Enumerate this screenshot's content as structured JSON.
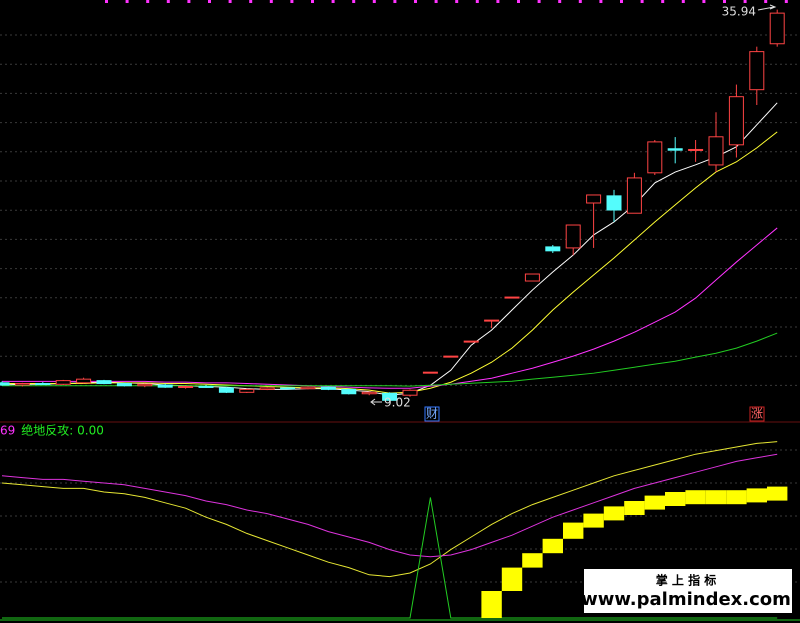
{
  "chart_data": [
    {
      "type": "candlestick",
      "ylim": [
        7.8,
        36.6
      ],
      "up_color": "#ff4444",
      "down_color": "#54fcfc",
      "open": [
        10.35,
        10.2,
        10.3,
        10.25,
        10.35,
        10.5,
        10.3,
        10.15,
        10.2,
        10.05,
        10.1,
        10.0,
        9.7,
        9.9,
        10.0,
        9.95,
        10.05,
        9.9,
        9.6,
        9.63,
        9.5,
        11.08,
        12.18,
        13.21,
        14.65,
        16.23,
        17.33,
        19.67,
        19.6,
        22.68,
        23.17,
        21.98,
        24.75,
        26.4,
        26.3,
        25.29,
        26.67,
        30.45,
        33.6
      ],
      "high": [
        10.45,
        10.35,
        10.4,
        10.55,
        10.7,
        10.55,
        10.35,
        10.3,
        10.3,
        10.15,
        10.2,
        10.05,
        9.95,
        10.05,
        10.05,
        10.1,
        10.1,
        9.95,
        9.75,
        9.7,
        9.9,
        11.08,
        12.18,
        13.21,
        14.65,
        16.23,
        17.81,
        19.8,
        21.17,
        23.23,
        23.58,
        24.75,
        27.0,
        27.2,
        27.0,
        28.9,
        30.8,
        33.4,
        35.94
      ],
      "low": [
        10.15,
        10.1,
        10.2,
        10.2,
        10.3,
        10.25,
        10.1,
        10.05,
        10.0,
        9.95,
        10.0,
        9.65,
        9.65,
        9.85,
        9.9,
        9.9,
        9.85,
        9.55,
        9.5,
        9.02,
        9.4,
        11.08,
        12.18,
        13.21,
        14.1,
        16.23,
        17.33,
        19.25,
        19.1,
        19.6,
        21.38,
        21.98,
        24.6,
        25.4,
        25.5,
        24.8,
        25.8,
        29.4,
        33.4
      ],
      "close": [
        10.2,
        10.3,
        10.25,
        10.5,
        10.6,
        10.3,
        10.15,
        10.25,
        10.05,
        10.1,
        10.05,
        9.7,
        9.9,
        10.0,
        9.95,
        10.05,
        9.9,
        9.6,
        9.7,
        9.15,
        9.84,
        11.08,
        12.18,
        13.21,
        14.65,
        16.23,
        17.81,
        19.4,
        21.17,
        23.23,
        22.2,
        24.4,
        26.87,
        26.3,
        26.35,
        27.22,
        29.97,
        33.06,
        35.7
      ],
      "series": [
        {
          "color": "#ffffff",
          "values": [
            10.2,
            10.25,
            10.25,
            10.3,
            10.35,
            10.4,
            10.35,
            10.3,
            10.2,
            10.15,
            10.1,
            10.05,
            9.95,
            9.9,
            9.9,
            9.95,
            9.95,
            9.85,
            9.75,
            9.5,
            9.64,
            10.18,
            11.21,
            12.93,
            13.96,
            15.34,
            16.71,
            17.95,
            19.11,
            20.49,
            21.38,
            22.55,
            24.06,
            24.8,
            25.3,
            25.84,
            26.53,
            28.04,
            29.55
          ]
        },
        {
          "color": "#ffff33",
          "values": [
            10.3,
            10.3,
            10.3,
            10.3,
            10.3,
            10.35,
            10.35,
            10.35,
            10.3,
            10.3,
            10.25,
            10.2,
            10.15,
            10.1,
            10.05,
            10.0,
            10.0,
            9.95,
            9.85,
            9.64,
            9.7,
            9.98,
            10.39,
            11.01,
            11.76,
            12.73,
            13.96,
            15.34,
            16.57,
            17.74,
            18.91,
            20.14,
            21.38,
            22.55,
            23.72,
            24.81,
            25.5,
            26.46,
            27.56
          ]
        },
        {
          "color": "#ff33ff",
          "values": [
            10.45,
            10.45,
            10.45,
            10.45,
            10.45,
            10.45,
            10.45,
            10.45,
            10.4,
            10.4,
            10.35,
            10.35,
            10.3,
            10.25,
            10.2,
            10.15,
            10.1,
            10.05,
            10.0,
            9.98,
            9.98,
            10.12,
            10.25,
            10.46,
            10.66,
            11.01,
            11.35,
            11.76,
            12.18,
            12.66,
            13.21,
            13.82,
            14.51,
            15.2,
            16.16,
            17.4,
            18.63,
            19.8,
            20.97
          ]
        },
        {
          "color": "#22cc22",
          "values": [
            10.15,
            10.15,
            10.15,
            10.15,
            10.15,
            10.15,
            10.15,
            10.15,
            10.15,
            10.15,
            10.15,
            10.15,
            10.15,
            10.15,
            10.15,
            10.15,
            10.15,
            10.15,
            10.15,
            10.15,
            10.12,
            10.18,
            10.25,
            10.32,
            10.39,
            10.46,
            10.6,
            10.73,
            10.87,
            11.01,
            11.21,
            11.42,
            11.63,
            11.83,
            12.11,
            12.38,
            12.73,
            13.21,
            13.76
          ]
        }
      ],
      "annotations": [
        {
          "text": "35.94"
        },
        {
          "text": "9.02"
        }
      ],
      "markers": [
        {
          "label": "财",
          "color": "#3377ff"
        },
        {
          "label": "涨",
          "color": "#cc2222"
        }
      ]
    },
    {
      "type": "indicator",
      "ylim": [
        0,
        100
      ],
      "legend": [
        {
          "text": "69",
          "color": "#ff33ff"
        },
        {
          "text": "绝地反攻: 0.00",
          "color": "#22ee22"
        }
      ],
      "series": [
        {
          "kind": "line",
          "color": "#e6e633",
          "values": [
            75,
            74,
            73,
            72,
            72,
            70,
            69,
            67,
            64,
            61,
            56,
            52,
            47,
            43,
            39,
            35,
            31,
            28,
            24,
            23,
            25,
            30,
            38,
            45,
            52,
            58,
            63,
            67,
            71,
            75,
            79,
            82,
            85,
            88,
            91,
            93,
            95,
            97,
            98
          ]
        },
        {
          "kind": "line",
          "color": "#dd33dd",
          "values": [
            79,
            78,
            77,
            77,
            76,
            75,
            74,
            72,
            70,
            68,
            65,
            63,
            60,
            58,
            55,
            52,
            48,
            45,
            42,
            38,
            35,
            34,
            35,
            38,
            42,
            46,
            51,
            56,
            60,
            64,
            68,
            72,
            75,
            78,
            81,
            84,
            87,
            89,
            91
          ]
        },
        {
          "kind": "line",
          "color": "#22cc22",
          "values": [
            0,
            0,
            0,
            0,
            0,
            0,
            0,
            0,
            0,
            0,
            0,
            0,
            0,
            0,
            0,
            0,
            0,
            0,
            0,
            0,
            0,
            67,
            0,
            0,
            0,
            0,
            0,
            0,
            0,
            0,
            0,
            0,
            0,
            0,
            0,
            0,
            0,
            0,
            0
          ]
        },
        {
          "kind": "step",
          "color": "#ffff00",
          "values": [
            null,
            null,
            null,
            null,
            null,
            null,
            null,
            null,
            null,
            null,
            null,
            null,
            null,
            null,
            null,
            null,
            null,
            null,
            null,
            null,
            null,
            null,
            null,
            null,
            15,
            28,
            36,
            44,
            53,
            58,
            62,
            65,
            68,
            70,
            71,
            71,
            71,
            72,
            73
          ]
        }
      ]
    }
  ],
  "watermark": {
    "title": "掌 上 指 标",
    "url": "www.palmindex.com"
  }
}
